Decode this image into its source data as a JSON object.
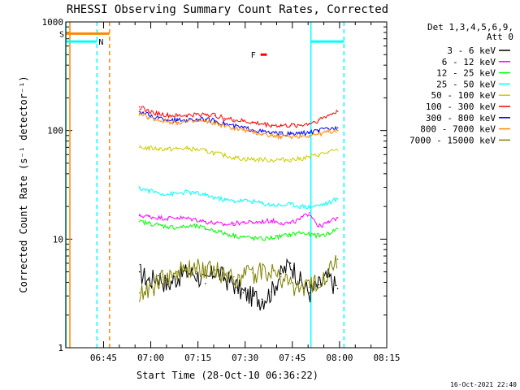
{
  "chart_data": {
    "type": "line",
    "title": "RHESSI Observing Summary Count Rates, Corrected",
    "xlabel": "Start Time (28-Oct-10 06:36:22)",
    "ylabel": "Corrected Count Rate (s⁻¹ detector⁻¹)",
    "yscale": "log",
    "ylim": [
      1,
      1000
    ],
    "xlim_min": [
      -3.4,
      82.6
    ],
    "x_ticks_min": [
      8.6,
      23.6,
      38.6,
      53.6,
      68.6,
      83.6,
      98.6
    ],
    "x_tick_labels": [
      "06:45",
      "07:00",
      "07:15",
      "07:30",
      "07:45",
      "08:00",
      "08:15"
    ],
    "y_ticks": [
      1,
      10,
      100,
      1000
    ],
    "y_tick_labels": [
      "1",
      "10",
      "100",
      "1000"
    ],
    "legend_title": [
      "Det 1,3,4,5,6,9,",
      "Att 0"
    ],
    "legend_position": "right",
    "footer": "16-Oct-2021 22:40",
    "series": [
      {
        "name": "3 - 6 keV",
        "color": "#000000",
        "x_min": [
          20,
          23,
          26,
          29,
          32,
          35,
          38,
          41,
          44,
          47,
          50,
          53,
          56,
          59,
          62,
          65,
          68,
          71,
          74,
          77,
          80,
          83
        ],
        "values": [
          5.0,
          4.2,
          4.6,
          3.8,
          4.5,
          5.0,
          4.8,
          3.9,
          5.2,
          4.4,
          3.9,
          3.2,
          3.0,
          2.8,
          3.3,
          4.8,
          6.0,
          4.2,
          3.2,
          3.8,
          4.5,
          3.5
        ]
      },
      {
        "name": "6 - 12 keV",
        "color": "#ff00ff",
        "x_min": [
          20,
          23,
          26,
          29,
          32,
          35,
          38,
          41,
          44,
          47,
          50,
          53,
          56,
          59,
          62,
          65,
          68,
          71,
          74,
          77,
          80,
          83
        ],
        "values": [
          16.5,
          16.2,
          15.8,
          15.6,
          15.8,
          15.5,
          15.2,
          14.5,
          14.0,
          13.6,
          13.9,
          14.3,
          14.2,
          14.5,
          14.8,
          14.2,
          14.0,
          15.2,
          17.5,
          13.0,
          14.2,
          15.8
        ]
      },
      {
        "name": "12 - 25 keV",
        "color": "#00ff00",
        "x_min": [
          20,
          23,
          26,
          29,
          32,
          35,
          38,
          41,
          44,
          47,
          50,
          53,
          56,
          59,
          62,
          65,
          68,
          71,
          74,
          77,
          80,
          83
        ],
        "values": [
          14.5,
          14.0,
          13.5,
          13.0,
          12.8,
          13.0,
          13.2,
          12.5,
          12.0,
          11.3,
          10.8,
          10.5,
          10.2,
          10.0,
          10.3,
          10.6,
          11.0,
          11.5,
          11.0,
          10.8,
          11.2,
          12.5
        ]
      },
      {
        "name": "25 - 50 keV",
        "color": "#00ffff",
        "x_min": [
          20,
          23,
          26,
          29,
          32,
          35,
          38,
          41,
          44,
          47,
          50,
          53,
          56,
          59,
          62,
          65,
          68,
          71,
          74,
          77,
          80,
          83
        ],
        "values": [
          29.5,
          28.0,
          26.8,
          26.0,
          26.3,
          27.2,
          26.5,
          25.3,
          24.2,
          23.0,
          22.5,
          22.7,
          22.3,
          21.4,
          20.7,
          20.5,
          21.0,
          20.2,
          19.8,
          20.5,
          21.5,
          23.5
        ]
      },
      {
        "name": "50 - 100 keV",
        "color": "#cccc00",
        "x_min": [
          20,
          23,
          26,
          29,
          32,
          35,
          38,
          41,
          44,
          47,
          50,
          53,
          56,
          59,
          62,
          65,
          68,
          71,
          74,
          77,
          80,
          83
        ],
        "values": [
          70.0,
          69.0,
          68.0,
          67.5,
          67.8,
          68.5,
          67.0,
          65.0,
          62.0,
          59.0,
          56.5,
          55.0,
          54.2,
          54.0,
          53.5,
          53.8,
          54.0,
          55.0,
          57.0,
          60.0,
          63.0,
          66.0
        ]
      },
      {
        "name": "100 - 300 keV",
        "color": "#ff0000",
        "x_min": [
          20,
          23,
          26,
          29,
          32,
          35,
          38,
          41,
          44,
          47,
          50,
          53,
          56,
          59,
          62,
          65,
          68,
          71,
          74,
          77,
          80,
          83
        ],
        "values": [
          165,
          150,
          143,
          138,
          136,
          138,
          140,
          142,
          138,
          130,
          125,
          122,
          118,
          115,
          112,
          111,
          111,
          112,
          116,
          125,
          138,
          150
        ]
      },
      {
        "name": "300 - 800 keV",
        "color": "#0000ff",
        "x_min": [
          20,
          23,
          26,
          29,
          32,
          35,
          38,
          41,
          44,
          47,
          50,
          53,
          56,
          59,
          62,
          65,
          68,
          71,
          74,
          77,
          80,
          83
        ],
        "values": [
          150,
          138,
          130,
          126,
          124,
          125,
          127,
          127,
          123,
          116,
          110,
          106,
          102,
          98,
          95,
          93,
          93,
          94,
          96,
          100,
          104,
          106
        ]
      },
      {
        "name": "800 - 7000 keV",
        "color": "#ff8800",
        "x_min": [
          20,
          23,
          26,
          29,
          32,
          35,
          38,
          41,
          44,
          47,
          50,
          53,
          56,
          59,
          62,
          65,
          68,
          71,
          74,
          77,
          80,
          83
        ],
        "values": [
          142,
          132,
          125,
          121,
          119,
          120,
          121,
          121,
          117,
          110,
          105,
          101,
          97,
          93,
          90,
          88,
          88,
          89,
          90,
          93,
          97,
          100
        ]
      },
      {
        "name": "7000 - 15000 keV",
        "color": "#808000",
        "x_min": [
          20,
          23,
          26,
          29,
          32,
          35,
          38,
          41,
          44,
          47,
          50,
          53,
          56,
          59,
          62,
          65,
          68,
          71,
          74,
          77,
          80,
          83
        ],
        "values": [
          3.2,
          3.5,
          4.0,
          4.6,
          5.0,
          5.2,
          5.4,
          5.6,
          5.2,
          4.8,
          4.5,
          4.6,
          4.9,
          5.3,
          5.0,
          4.5,
          3.9,
          3.5,
          3.6,
          4.2,
          5.0,
          6.5
        ]
      }
    ],
    "flag_bars": [
      {
        "label": "S",
        "color": "#ff8800",
        "x_min": [
          -3.4,
          10.5
        ],
        "y": 780
      },
      {
        "label": "N",
        "color": "#00ffff",
        "x_min": [
          -3.4,
          6.5
        ],
        "y": 660
      },
      {
        "label": "",
        "color": "#00ffff",
        "x_min": [
          74.5,
          85.0
        ],
        "y": 660
      },
      {
        "label": "F",
        "color": "#ff0000",
        "x_min": [
          58.5,
          60.5
        ],
        "y": 500
      }
    ],
    "vlines": [
      {
        "x_min": -3.4,
        "color": "#00ffff",
        "style": "solid"
      },
      {
        "x_min": -3.4,
        "color": "#ff8800",
        "style": "solid"
      },
      {
        "x_min": 6.5,
        "color": "#00ffff",
        "style": "dashed"
      },
      {
        "x_min": 10.5,
        "color": "#ff8800",
        "style": "dashed"
      },
      {
        "x_min": 74.5,
        "color": "#00ffff",
        "style": "solid"
      },
      {
        "x_min": 85.0,
        "color": "#00ffff",
        "style": "dashed"
      }
    ]
  }
}
